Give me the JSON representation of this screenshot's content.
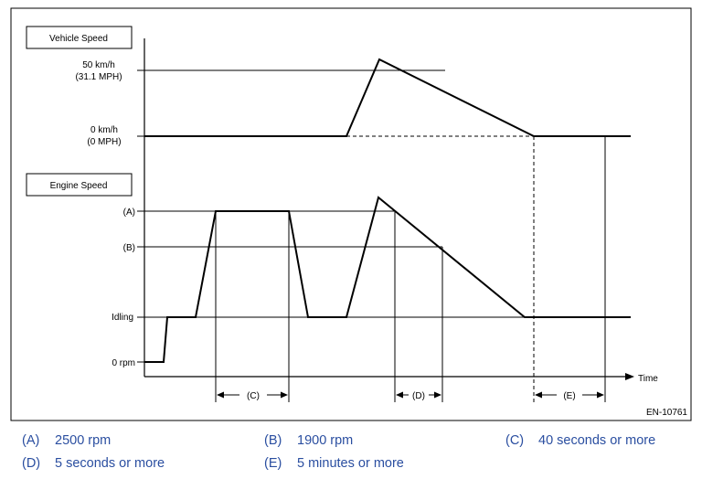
{
  "boxes": {
    "vehicle_speed": "Vehicle Speed",
    "engine_speed": "Engine Speed"
  },
  "vehicle_axis": {
    "upper_line1": "50 km/h",
    "upper_line2": "(31.1 MPH)",
    "lower_line1": "0 km/h",
    "lower_line2": "(0 MPH)"
  },
  "engine_axis": {
    "a": "(A)",
    "b": "(B)",
    "idling": "Idling",
    "zero": "0 rpm"
  },
  "time_label": "Time",
  "intervals": {
    "c": "(C)",
    "d": "(D)",
    "e": "(E)"
  },
  "figure_code": "EN-10761",
  "legend": [
    {
      "key": "(A)",
      "text": "2500 rpm"
    },
    {
      "key": "(B)",
      "text": "1900 rpm"
    },
    {
      "key": "(C)",
      "text": "40 seconds or more"
    },
    {
      "key": "(D)",
      "text": "5 seconds or more"
    },
    {
      "key": "(E)",
      "text": "5 minutes or more"
    }
  ],
  "colors": {
    "frame": "#000000",
    "legend_text": "#2a4ea0"
  }
}
